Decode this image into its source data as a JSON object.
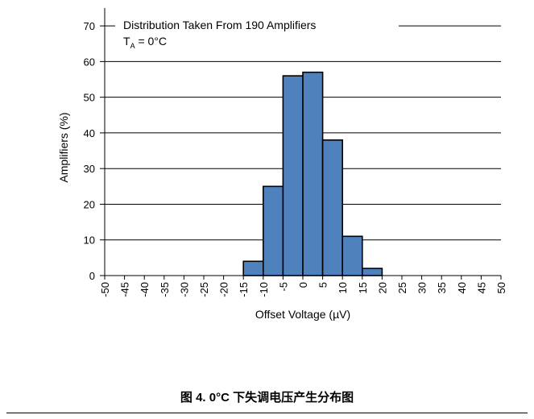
{
  "chart_data": {
    "type": "bar",
    "xlabel": "Offset Voltage (µV)",
    "ylabel": "Amplifiers (%)",
    "ylim": [
      0,
      75
    ],
    "yticks": [
      0,
      10,
      20,
      30,
      40,
      50,
      60,
      70
    ],
    "xticks": [
      -50,
      -45,
      -40,
      -35,
      -30,
      -25,
      -20,
      -15,
      -10,
      -5,
      0,
      5,
      10,
      15,
      20,
      25,
      30,
      35,
      40,
      45,
      50
    ],
    "xlim": [
      -50,
      50
    ],
    "bars": [
      {
        "from": -15,
        "to": -10,
        "value": 4
      },
      {
        "from": -10,
        "to": -5,
        "value": 25
      },
      {
        "from": -5,
        "to": 0,
        "value": 56
      },
      {
        "from": 0,
        "to": 5,
        "value": 57
      },
      {
        "from": 5,
        "to": 10,
        "value": 38
      },
      {
        "from": 10,
        "to": 15,
        "value": 11
      },
      {
        "from": 15,
        "to": 20,
        "value": 2
      }
    ],
    "bar_color": "#4f81bd",
    "grid": "horizontal",
    "legend": {
      "line1": "Distribution Taken From 190 Amplifiers",
      "line2_main": "T",
      "line2_sub": "A",
      "line2_rest": " = 0°C",
      "placement": "top-left"
    }
  },
  "caption": "图 4. 0°C 下失调电压产生分布图"
}
